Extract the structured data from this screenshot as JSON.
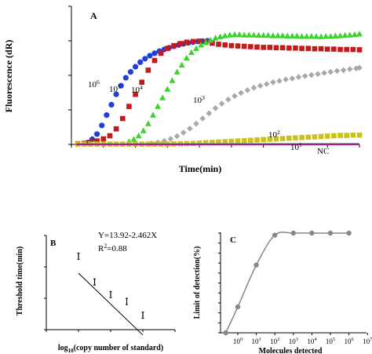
{
  "chart_data": [
    {
      "panel": "A",
      "type": "scatter",
      "xlabel": "Time(min)",
      "ylabel": "Fluorescence (dR)",
      "xlim": [
        2,
        20
      ],
      "ylim": [
        0,
        40000
      ],
      "xticks": [
        "2",
        "4",
        "6",
        "8",
        "10",
        "12",
        "14",
        "16",
        "18",
        "20"
      ],
      "yticks": [
        "0",
        "10000",
        "20000",
        "30000",
        "40000"
      ],
      "series": [
        {
          "name": "10^6",
          "color": "#1f3fd8",
          "marker": "circle",
          "x": [
            3.0,
            3.3,
            3.6,
            3.9,
            4.2,
            4.5,
            4.8,
            5.1,
            5.4,
            5.7,
            6.0,
            6.3,
            6.6,
            6.9,
            7.2,
            7.5,
            7.8,
            8.1,
            8.4,
            8.7,
            9.0,
            9.3,
            9.6,
            9.9,
            10.2,
            10.5
          ],
          "y": [
            500,
            1500,
            3000,
            5500,
            8500,
            11500,
            14500,
            17000,
            19300,
            21000,
            22500,
            23800,
            24800,
            25700,
            26400,
            27000,
            27500,
            28000,
            28400,
            28800,
            29100,
            29400,
            29600,
            29800,
            29900,
            30000
          ]
        },
        {
          "name": "10^5",
          "color": "#c41a1a",
          "marker": "square",
          "x": [
            2.4,
            2.8,
            3.2,
            3.6,
            4.0,
            4.4,
            4.8,
            5.2,
            5.6,
            6.0,
            6.4,
            6.8,
            7.2,
            7.6,
            8.0,
            8.4,
            8.8,
            9.2,
            9.6,
            10.0,
            10.4,
            10.8,
            11.2,
            11.6,
            12.0,
            12.4,
            12.8,
            13.2,
            13.6,
            14.0,
            14.4,
            14.8,
            15.2,
            15.6,
            16.0,
            16.4,
            16.8,
            17.2,
            17.6,
            18.0,
            18.4,
            18.8,
            19.2,
            19.6,
            20.0
          ],
          "y": [
            200,
            300,
            600,
            1000,
            1600,
            2500,
            4500,
            7500,
            11000,
            14500,
            18000,
            21500,
            24300,
            26400,
            27800,
            28600,
            29200,
            29600,
            29800,
            29900,
            29600,
            29300,
            29000,
            28800,
            28600,
            28500,
            28400,
            28300,
            28200,
            28100,
            28100,
            28000,
            28000,
            27900,
            27900,
            27800,
            27800,
            27700,
            27700,
            27600,
            27600,
            27500,
            27500,
            27500,
            27400
          ]
        },
        {
          "name": "10^4",
          "color": "#3bd42b",
          "marker": "triangle",
          "x": [
            5.6,
            5.9,
            6.2,
            6.5,
            6.8,
            7.1,
            7.4,
            7.7,
            8.0,
            8.3,
            8.6,
            8.9,
            9.2,
            9.5,
            9.8,
            10.1,
            10.4,
            10.7,
            11.0,
            11.3,
            11.6,
            11.9,
            12.2,
            12.5,
            12.8,
            13.1,
            13.4,
            13.7,
            14.0,
            14.3,
            14.6,
            14.9,
            15.2,
            15.5,
            15.8,
            16.1,
            16.4,
            16.7,
            17.0,
            17.3,
            17.6,
            17.9,
            18.2,
            18.5,
            18.8,
            19.1,
            19.4,
            19.7,
            20.0
          ],
          "y": [
            800,
            1500,
            2500,
            4000,
            6000,
            8500,
            11000,
            13500,
            16000,
            18500,
            21000,
            23000,
            25000,
            26600,
            27800,
            28800,
            29500,
            30200,
            30800,
            31200,
            31500,
            31700,
            31800,
            31800,
            31700,
            31700,
            31700,
            31600,
            31600,
            31600,
            31500,
            31500,
            31500,
            31400,
            31400,
            31400,
            31300,
            31300,
            31300,
            31300,
            31200,
            31300,
            31300,
            31400,
            31500,
            31600,
            31700,
            31800,
            32000
          ]
        },
        {
          "name": "10^3",
          "color": "#a8a8a8",
          "marker": "diamond",
          "x": [
            7.0,
            7.4,
            7.8,
            8.2,
            8.6,
            9.0,
            9.4,
            9.8,
            10.2,
            10.6,
            11.0,
            11.4,
            11.8,
            12.2,
            12.6,
            13.0,
            13.4,
            13.8,
            14.2,
            14.6,
            15.0,
            15.4,
            15.8,
            16.2,
            16.6,
            17.0,
            17.4,
            17.8,
            18.2,
            18.6,
            19.0,
            19.4,
            19.8,
            20.0
          ],
          "y": [
            300,
            600,
            1000,
            1600,
            2400,
            3400,
            4600,
            6000,
            7500,
            9000,
            10500,
            11800,
            13000,
            14000,
            14900,
            15700,
            16400,
            17000,
            17500,
            18000,
            18400,
            18800,
            19100,
            19500,
            19800,
            20100,
            20400,
            20700,
            21000,
            21300,
            21500,
            21800,
            22000,
            22200
          ]
        },
        {
          "name": "10^2",
          "color": "#c9c21a",
          "marker": "square",
          "x": [
            2.4,
            2.8,
            3.2,
            3.6,
            4.0,
            4.4,
            4.8,
            5.2,
            5.6,
            6.0,
            6.4,
            6.8,
            7.2,
            7.6,
            8.0,
            8.4,
            8.8,
            9.2,
            9.6,
            10.0,
            10.4,
            10.8,
            11.2,
            11.6,
            12.0,
            12.4,
            12.8,
            13.2,
            13.6,
            14.0,
            14.4,
            14.8,
            15.2,
            15.6,
            16.0,
            16.4,
            16.8,
            17.2,
            17.6,
            18.0,
            18.4,
            18.8,
            19.2,
            19.6,
            20.0
          ],
          "y": [
            100,
            100,
            100,
            100,
            100,
            100,
            100,
            100,
            100,
            100,
            100,
            100,
            100,
            100,
            100,
            150,
            200,
            250,
            300,
            400,
            500,
            600,
            700,
            800,
            900,
            1000,
            1100,
            1200,
            1300,
            1400,
            1500,
            1600,
            1700,
            1800,
            1900,
            2000,
            2100,
            2200,
            2300,
            2400,
            2500,
            2600,
            2600,
            2700,
            2700
          ]
        },
        {
          "name": "10^1",
          "color": "#8a8a8a",
          "marker": "line",
          "x": [
            2.3,
            20.0
          ],
          "y": [
            100,
            200
          ]
        },
        {
          "name": "NC",
          "color": "#b0169a",
          "marker": "line",
          "x": [
            2.3,
            20.0
          ],
          "y": [
            0,
            0
          ]
        }
      ],
      "annotations": [
        "10^6",
        "10^5",
        "10^4",
        "10^3",
        "10^2",
        "10^1",
        "NC"
      ]
    },
    {
      "panel": "B",
      "type": "scatter",
      "xlabel": "log10(copy number of standard)",
      "ylabel": "Threshold time(min)",
      "xlim": [
        0,
        8
      ],
      "ylim": [
        0,
        15
      ],
      "xticks": [
        "0",
        "2",
        "4",
        "6",
        "8"
      ],
      "yticks": [
        "0",
        "5",
        "10",
        "15"
      ],
      "x": [
        2,
        3,
        4,
        5,
        6
      ],
      "y": [
        11.7,
        7.6,
        5.6,
        4.5,
        2.3
      ],
      "fit": {
        "slope": -2.462,
        "intercept": 13.92
      },
      "annotations": [
        "Y=13.92-2.462X",
        "R^2=0.88"
      ]
    },
    {
      "panel": "C",
      "type": "line",
      "xlabel": "Molecules detected",
      "ylabel": "Limit of detection(%)",
      "ylim": [
        0,
        100
      ],
      "yticks": [
        "0",
        "10",
        "20",
        "30",
        "40",
        "50",
        "60",
        "70",
        "80",
        "90",
        "100"
      ],
      "categories": [
        "10^0",
        "10^1",
        "10^2",
        "10^3",
        "10^4",
        "10^5",
        "10^6",
        "10^7"
      ],
      "x": [
        0,
        1,
        2,
        3,
        4,
        5,
        6,
        7
      ],
      "points_x": [
        -0.65,
        0,
        1,
        2,
        3,
        4,
        5,
        6
      ],
      "values": [
        0,
        26,
        68,
        98,
        100,
        100,
        100,
        100
      ],
      "color": "#888888"
    }
  ],
  "ui": {
    "panel_a_label": "A",
    "panel_b_label": "B",
    "panel_c_label": "C",
    "a_xlabel": "Time(min)",
    "a_ylabel": "Fluorescence (dR)",
    "b_xlabel_pre": "log",
    "b_xlabel_sub": "10",
    "b_xlabel_post": "(copy number of standard)",
    "b_ylabel": "Threshold time(min)",
    "b_eq": "Y=13.92-2.462X",
    "b_r2_pre": "R",
    "b_r2_sup": "2",
    "b_r2_post": "=0.88",
    "c_xlabel": "Molecules detected",
    "c_ylabel": "Limit of detection(%)"
  }
}
